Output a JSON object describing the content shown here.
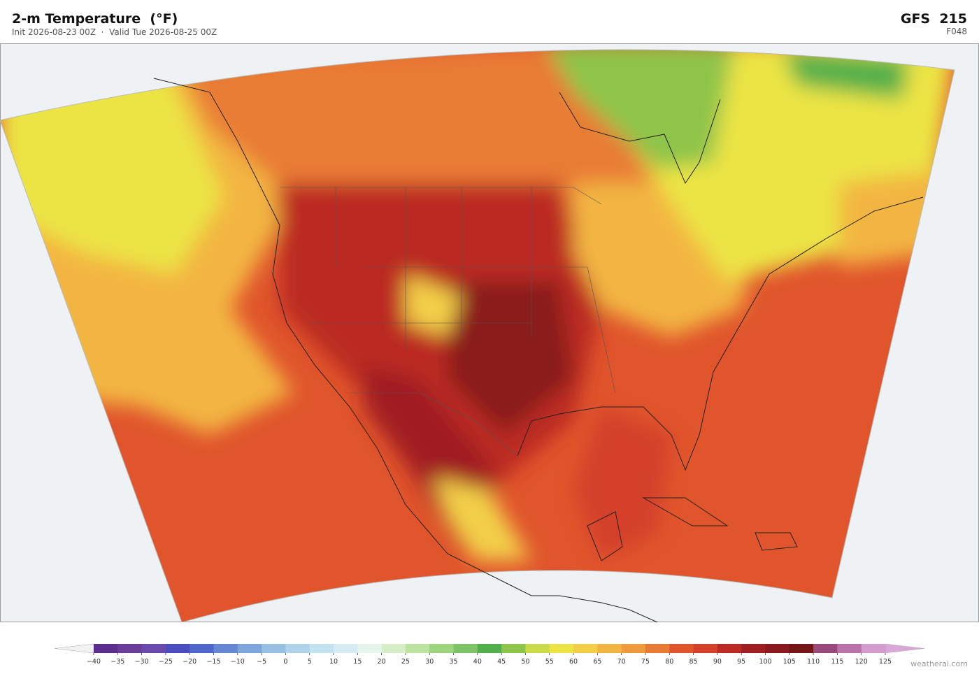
{
  "header": {
    "title": "2-m Temperature  (°F)",
    "subtitle": "Init 2026-08-23 00Z  ·  Valid Tue 2026-08-25 00Z",
    "model": "GFS  215",
    "forecast_hour": "F048"
  },
  "colorbar": {
    "ticks": [
      {
        "value": -40,
        "label": "−40"
      },
      {
        "value": -35,
        "label": "−35"
      },
      {
        "value": -30,
        "label": "−30"
      },
      {
        "value": -25,
        "label": "−25"
      },
      {
        "value": -20,
        "label": "−20"
      },
      {
        "value": -15,
        "label": "−15"
      },
      {
        "value": -10,
        "label": "−10"
      },
      {
        "value": -5,
        "label": "−5"
      },
      0,
      5,
      10,
      15,
      20,
      25,
      30,
      35,
      40,
      45,
      50,
      55,
      60,
      65,
      70,
      75,
      80,
      85,
      90,
      95,
      100,
      105,
      110,
      115,
      120,
      125
    ],
    "colors": [
      "#5b2d8e",
      "#6a3d9a",
      "#6b4ab0",
      "#4a4cc0",
      "#4f66cc",
      "#6587d4",
      "#7ea6dc",
      "#98c0e2",
      "#aed3ea",
      "#c3e2f0",
      "#d6ecf2",
      "#e6f4ee",
      "#d7edc8",
      "#bce3a0",
      "#9dd47e",
      "#7cc466",
      "#52b04c",
      "#8ec44a",
      "#c9dc48",
      "#ece444",
      "#f3cf48",
      "#f3b542",
      "#ef9a3c",
      "#e97c34",
      "#e0552c",
      "#d44029",
      "#bb2b24",
      "#a01e20",
      "#8a1a1e",
      "#751518",
      "#9a4a7a",
      "#bb72aa",
      "#d49ccc"
    ],
    "under_color": "#f2f2f2",
    "over_color": "#d9a8d8"
  },
  "footer": {
    "credit": "weatherai.com"
  }
}
